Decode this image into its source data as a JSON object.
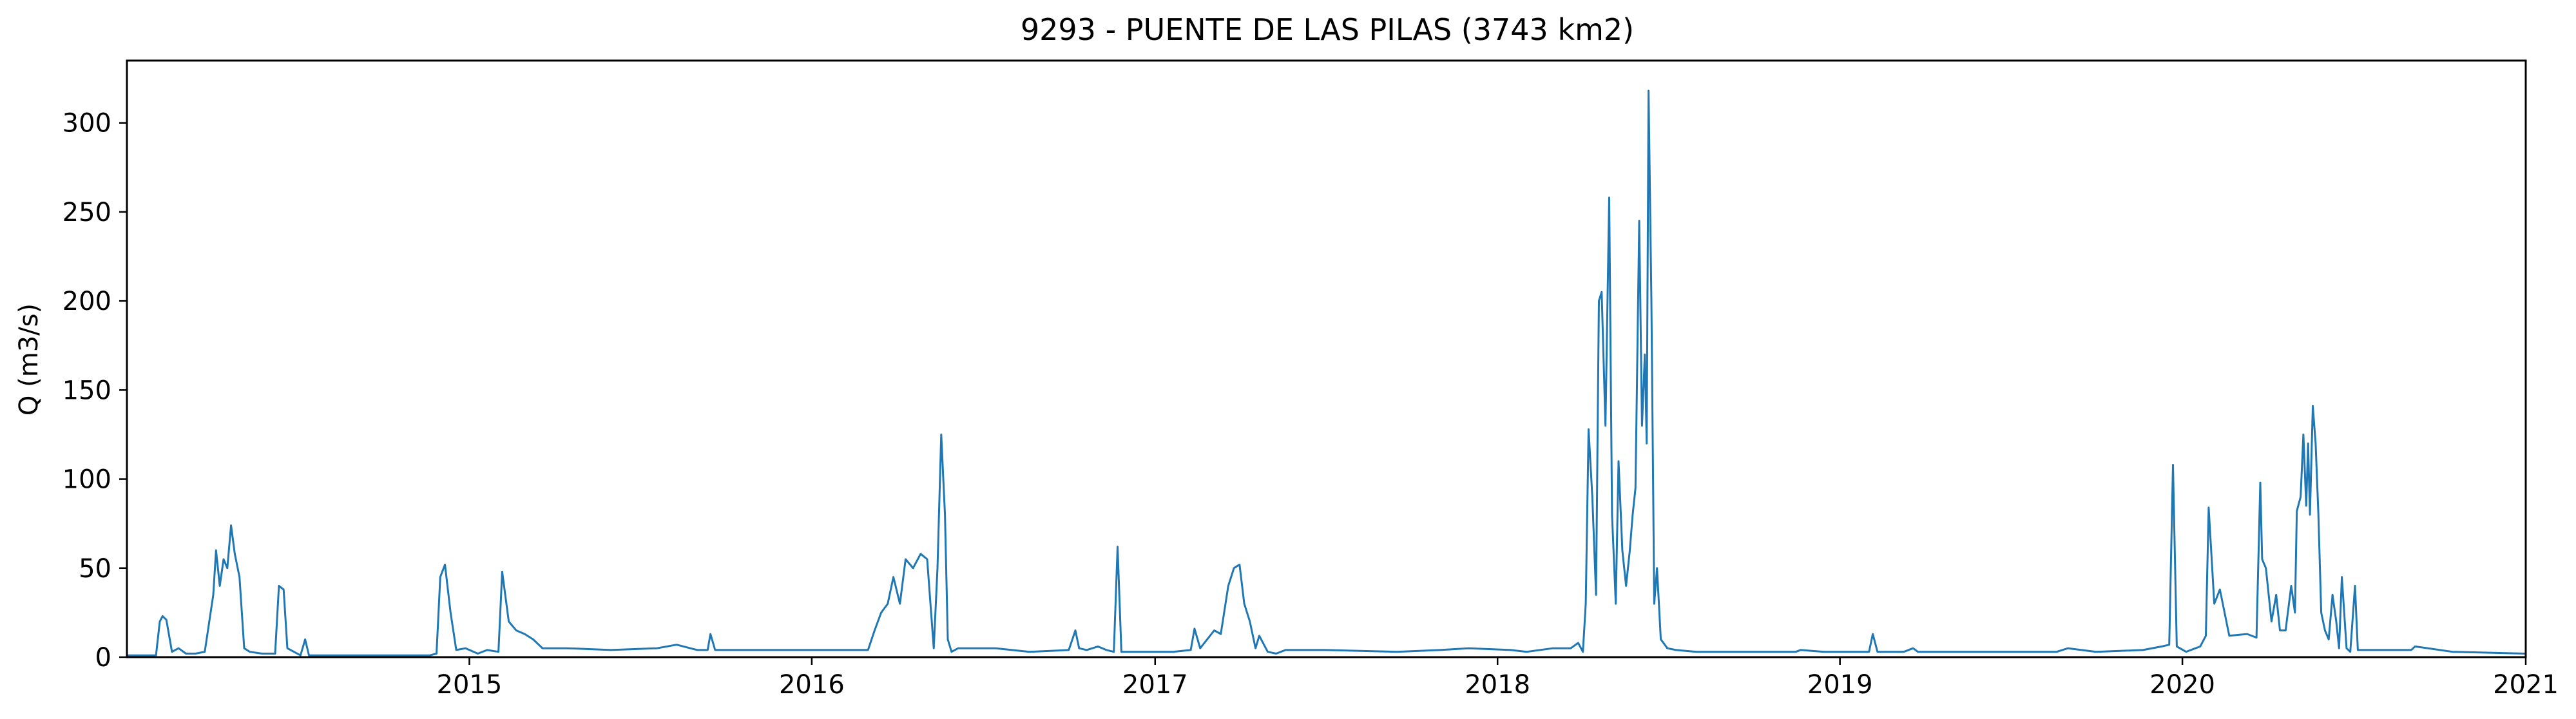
{
  "chart_data": {
    "type": "line",
    "title": "9293 - PUENTE DE LAS PILAS (3743 km2)",
    "xlabel": "",
    "ylabel": "Q (m3/s)",
    "xlim": [
      "2014-01-01",
      "2021-01-01"
    ],
    "ylim": [
      0,
      335
    ],
    "xticks": [
      "2015",
      "2016",
      "2017",
      "2018",
      "2019",
      "2020",
      "2021"
    ],
    "yticks": [
      0,
      50,
      100,
      150,
      200,
      250,
      300
    ],
    "grid": false,
    "color": "#1f77b4",
    "series": [
      {
        "x": [
          "2014-01-01",
          "2014-01-15",
          "2014-02-01",
          "2014-02-05",
          "2014-02-08",
          "2014-02-12",
          "2014-02-18",
          "2014-02-25",
          "2014-03-05",
          "2014-03-15",
          "2014-03-25",
          "2014-04-03",
          "2014-04-06",
          "2014-04-10",
          "2014-04-14",
          "2014-04-18",
          "2014-04-22",
          "2014-04-26",
          "2014-05-01",
          "2014-05-06",
          "2014-05-12",
          "2014-05-25",
          "2014-06-08",
          "2014-06-12",
          "2014-06-17",
          "2014-06-21",
          "2014-07-05",
          "2014-07-10",
          "2014-07-14",
          "2014-08-01",
          "2014-10-01",
          "2014-11-20",
          "2014-11-27",
          "2014-12-01",
          "2014-12-06",
          "2014-12-12",
          "2014-12-18",
          "2014-12-28",
          "2015-01-10",
          "2015-01-20",
          "2015-02-01",
          "2015-02-05",
          "2015-02-12",
          "2015-02-20",
          "2015-03-01",
          "2015-03-10",
          "2015-03-20",
          "2015-04-15",
          "2015-06-01",
          "2015-07-20",
          "2015-08-10",
          "2015-09-01",
          "2015-09-12",
          "2015-09-15",
          "2015-09-20",
          "2015-10-05",
          "2015-12-01",
          "2016-02-01",
          "2016-03-01",
          "2016-03-08",
          "2016-03-15",
          "2016-03-22",
          "2016-03-28",
          "2016-04-04",
          "2016-04-10",
          "2016-04-18",
          "2016-04-26",
          "2016-05-03",
          "2016-05-10",
          "2016-05-14",
          "2016-05-18",
          "2016-05-22",
          "2016-05-25",
          "2016-05-29",
          "2016-06-05",
          "2016-06-20",
          "2016-07-15",
          "2016-08-20",
          "2016-10-01",
          "2016-10-08",
          "2016-10-12",
          "2016-10-20",
          "2016-11-01",
          "2016-11-10",
          "2016-11-18",
          "2016-11-22",
          "2016-11-26",
          "2016-12-10",
          "2017-01-20",
          "2017-02-08",
          "2017-02-12",
          "2017-02-18",
          "2017-03-05",
          "2017-03-12",
          "2017-03-20",
          "2017-03-26",
          "2017-04-01",
          "2017-04-06",
          "2017-04-12",
          "2017-04-18",
          "2017-04-22",
          "2017-05-01",
          "2017-05-10",
          "2017-05-15",
          "2017-05-20",
          "2017-07-01",
          "2017-09-15",
          "2017-11-01",
          "2017-12-01",
          "2018-01-15",
          "2018-02-01",
          "2018-03-01",
          "2018-03-20",
          "2018-03-28",
          "2018-04-02",
          "2018-04-05",
          "2018-04-08",
          "2018-04-12",
          "2018-04-16",
          "2018-04-19",
          "2018-04-22",
          "2018-04-26",
          "2018-04-30",
          "2018-05-03",
          "2018-05-07",
          "2018-05-10",
          "2018-05-14",
          "2018-05-18",
          "2018-05-22",
          "2018-05-25",
          "2018-05-28",
          "2018-06-01",
          "2018-06-04",
          "2018-06-07",
          "2018-06-09",
          "2018-06-11",
          "2018-06-14",
          "2018-06-17",
          "2018-06-20",
          "2018-06-24",
          "2018-07-01",
          "2018-07-10",
          "2018-08-01",
          "2018-10-01",
          "2018-11-15",
          "2018-11-20",
          "2018-12-15",
          "2019-01-20",
          "2019-02-01",
          "2019-02-05",
          "2019-02-10",
          "2019-03-10",
          "2019-03-20",
          "2019-03-25",
          "2019-04-20",
          "2019-06-15",
          "2019-08-20",
          "2019-09-01",
          "2019-10-01",
          "2019-11-20",
          "2019-12-10",
          "2019-12-18",
          "2019-12-22",
          "2019-12-26",
          "2020-01-05",
          "2020-01-20",
          "2020-01-26",
          "2020-01-29",
          "2020-02-04",
          "2020-02-10",
          "2020-02-20",
          "2020-03-10",
          "2020-03-20",
          "2020-03-24",
          "2020-03-26",
          "2020-03-30",
          "2020-04-05",
          "2020-04-10",
          "2020-04-14",
          "2020-04-20",
          "2020-04-26",
          "2020-04-30",
          "2020-05-02",
          "2020-05-06",
          "2020-05-09",
          "2020-05-12",
          "2020-05-14",
          "2020-05-16",
          "2020-05-19",
          "2020-05-22",
          "2020-05-25",
          "2020-05-28",
          "2020-06-01",
          "2020-06-05",
          "2020-06-09",
          "2020-06-13",
          "2020-06-16",
          "2020-06-19",
          "2020-06-24",
          "2020-06-28",
          "2020-07-03",
          "2020-07-06",
          "2020-07-10",
          "2020-07-20",
          "2020-09-01",
          "2020-09-05",
          "2020-10-15",
          "2020-12-31"
        ],
        "y": [
          1,
          1,
          1,
          20,
          23,
          21,
          3,
          5,
          2,
          2,
          3,
          35,
          60,
          40,
          55,
          50,
          74,
          58,
          45,
          5,
          3,
          2,
          2,
          40,
          38,
          5,
          1,
          10,
          1,
          1,
          1,
          1,
          2,
          45,
          52,
          25,
          4,
          5,
          2,
          4,
          3,
          48,
          20,
          15,
          13,
          10,
          5,
          5,
          4,
          5,
          7,
          4,
          4,
          13,
          4,
          4,
          4,
          4,
          4,
          15,
          25,
          30,
          45,
          30,
          55,
          50,
          58,
          55,
          5,
          50,
          125,
          80,
          10,
          3,
          5,
          5,
          5,
          3,
          4,
          15,
          5,
          4,
          6,
          4,
          3,
          62,
          3,
          3,
          3,
          4,
          16,
          5,
          15,
          13,
          40,
          50,
          52,
          30,
          20,
          5,
          12,
          3,
          2,
          3,
          4,
          4,
          3,
          4,
          5,
          4,
          3,
          5,
          5,
          8,
          3,
          30,
          128,
          90,
          35,
          200,
          205,
          130,
          258,
          80,
          30,
          110,
          60,
          40,
          60,
          80,
          95,
          245,
          130,
          170,
          120,
          318,
          200,
          30,
          50,
          10,
          5,
          4,
          3,
          3,
          3,
          4,
          3,
          3,
          3,
          13,
          3,
          3,
          5,
          3,
          3,
          3,
          3,
          5,
          3,
          4,
          6,
          7,
          108,
          6,
          3,
          6,
          12,
          84,
          30,
          38,
          12,
          13,
          11,
          98,
          55,
          50,
          20,
          35,
          15,
          15,
          40,
          25,
          82,
          90,
          125,
          85,
          120,
          80,
          141,
          120,
          80,
          25,
          15,
          10,
          35,
          20,
          5,
          45,
          5,
          3,
          40,
          4,
          4,
          4,
          4,
          6,
          3,
          2
        ]
      }
    ]
  }
}
